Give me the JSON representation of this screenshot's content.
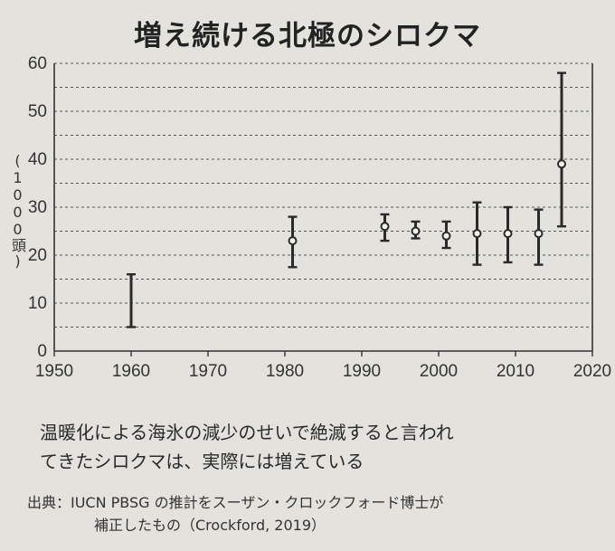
{
  "chart_data": {
    "type": "errorbar",
    "title": "増え続ける北極のシロクマ",
    "ylabel": "(1000頭)",
    "xlim": [
      1950,
      2020
    ],
    "ylim": [
      0,
      60
    ],
    "xticks": [
      1950,
      1960,
      1970,
      1980,
      1990,
      2000,
      2010,
      2020
    ],
    "yticks": [
      0,
      10,
      20,
      30,
      40,
      50,
      60
    ],
    "grid": "horizontal dashed every 5",
    "points": [
      {
        "x": 1960,
        "y": null,
        "low": 5,
        "high": 16
      },
      {
        "x": 1981,
        "y": 23,
        "low": 17.5,
        "high": 28
      },
      {
        "x": 1993,
        "y": 26,
        "low": 23,
        "high": 28.5
      },
      {
        "x": 1997,
        "y": 25,
        "low": 23.5,
        "high": 27
      },
      {
        "x": 2001,
        "y": 24,
        "low": 21.5,
        "high": 27
      },
      {
        "x": 2005,
        "y": 24.5,
        "low": 18,
        "high": 31
      },
      {
        "x": 2009,
        "y": 24.5,
        "low": 18.5,
        "high": 30
      },
      {
        "x": 2013,
        "y": 24.5,
        "low": 18,
        "high": 29.5
      },
      {
        "x": 2016,
        "y": 39,
        "low": 26,
        "high": 58
      }
    ]
  },
  "caption": {
    "line1": "温暖化による海氷の減少のせいで絶滅すると言われ",
    "line2": "てきたシロクマは、実際には増えている"
  },
  "source": {
    "line1": "出典：IUCN PBSG の推計をスーザン・クロックフォード博士が",
    "line2": "補正したもの（Crockford, 2019）"
  }
}
